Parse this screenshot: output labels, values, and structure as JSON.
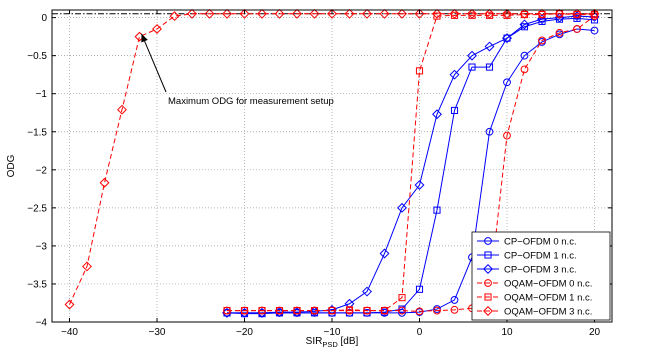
{
  "chart_data": {
    "type": "line",
    "xlabel": "SIR",
    "xlabel_sub": "PSD",
    "xlabel_unit": " [dB]",
    "ylabel": "ODG",
    "xlim": [
      -42,
      22
    ],
    "ylim": [
      -4,
      0.1
    ],
    "xticks": [
      -40,
      -30,
      -20,
      -10,
      0,
      10,
      20
    ],
    "yticks": [
      0,
      -0.5,
      -1,
      -1.5,
      -2,
      -2.5,
      -3,
      -3.5,
      -4
    ],
    "grid": true,
    "reference_line_y": 0.05,
    "legend_position": "bottom-right",
    "annotation": {
      "text": "Maximum ODG for measurement setup",
      "point": [
        -32,
        -0.2
      ]
    },
    "colors": {
      "blue": "#0000ff",
      "red": "#ff0000"
    },
    "series": [
      {
        "name": "CP−OFDM 0 n.c.",
        "color": "#0000ff",
        "marker": "circle",
        "dash": "solid",
        "x": [
          -22,
          -20,
          -18,
          -16,
          -14,
          -12,
          -10,
          -8,
          -6,
          -4,
          -2,
          0,
          2,
          4,
          6,
          8,
          10,
          12,
          14,
          16,
          18,
          20
        ],
        "y": [
          -3.88,
          -3.88,
          -3.88,
          -3.88,
          -3.88,
          -3.88,
          -3.88,
          -3.88,
          -3.88,
          -3.88,
          -3.88,
          -3.87,
          -3.83,
          -3.71,
          -3.15,
          -1.5,
          -0.85,
          -0.5,
          -0.32,
          -0.22,
          -0.15,
          -0.17
        ]
      },
      {
        "name": "CP−OFDM 1 n.c.",
        "color": "#0000ff",
        "marker": "square",
        "dash": "solid",
        "x": [
          -22,
          -20,
          -18,
          -16,
          -14,
          -12,
          -10,
          -8,
          -6,
          -4,
          -2,
          0,
          2,
          4,
          6,
          8,
          10,
          12,
          14,
          16,
          18,
          20
        ],
        "y": [
          -3.88,
          -3.89,
          -3.89,
          -3.88,
          -3.88,
          -3.88,
          -3.88,
          -3.88,
          -3.88,
          -3.87,
          -3.83,
          -3.57,
          -2.53,
          -1.22,
          -0.65,
          -0.65,
          -0.27,
          -0.12,
          -0.05,
          -0.02,
          -0.01,
          -0.03
        ]
      },
      {
        "name": "CP−OFDM 3 n.c.",
        "color": "#0000ff",
        "marker": "diamond",
        "dash": "solid",
        "x": [
          -22,
          -20,
          -18,
          -16,
          -14,
          -12,
          -10,
          -8,
          -6,
          -4,
          -2,
          0,
          2,
          4,
          6,
          8,
          10,
          12,
          14,
          16,
          18,
          20
        ],
        "y": [
          -3.88,
          -3.88,
          -3.88,
          -3.87,
          -3.87,
          -3.86,
          -3.84,
          -3.76,
          -3.6,
          -3.1,
          -2.5,
          -2.2,
          -1.27,
          -0.75,
          -0.5,
          -0.38,
          -0.27,
          -0.09,
          -0.02,
          0.0,
          0.02,
          0.01
        ]
      },
      {
        "name": "OQAM−OFDM 0 n.c.",
        "color": "#ff0000",
        "marker": "circle",
        "dash": "dashed",
        "x": [
          -22,
          -20,
          -18,
          -16,
          -14,
          -12,
          -10,
          -8,
          -6,
          -4,
          -2,
          0,
          2,
          4,
          6,
          8,
          10,
          12,
          14,
          16,
          18,
          20
        ],
        "y": [
          -3.85,
          -3.85,
          -3.85,
          -3.85,
          -3.85,
          -3.85,
          -3.85,
          -3.85,
          -3.85,
          -3.85,
          -3.85,
          -3.86,
          -3.85,
          -3.84,
          -3.82,
          -3.6,
          -1.55,
          -0.68,
          -0.3,
          -0.2,
          -0.15,
          0.02
        ]
      },
      {
        "name": "OQAM−OFDM 1 n.c.",
        "color": "#ff0000",
        "marker": "square",
        "dash": "dashed",
        "x": [
          -22,
          -20,
          -18,
          -16,
          -14,
          -12,
          -10,
          -8,
          -6,
          -4,
          -2,
          0,
          2,
          4,
          6,
          8,
          10,
          12,
          14,
          16,
          18,
          20
        ],
        "y": [
          -3.85,
          -3.85,
          -3.85,
          -3.85,
          -3.85,
          -3.85,
          -3.85,
          -3.84,
          -3.85,
          -3.85,
          -3.68,
          -0.7,
          0.02,
          0.03,
          0.03,
          0.03,
          0.03,
          0.04,
          0.04,
          0.05,
          0.04,
          0.04
        ]
      },
      {
        "name": "OQAM−OFDM 3 n.c.",
        "color": "#ff0000",
        "marker": "diamond",
        "dash": "dashed",
        "x": [
          -40,
          -38,
          -36,
          -34,
          -32,
          -30,
          -28,
          -26,
          -24,
          -22,
          -20,
          -18,
          -16,
          -14,
          -12,
          -10,
          -8,
          -6,
          -4,
          -2,
          0,
          2,
          4,
          6,
          8,
          10,
          12,
          14,
          16,
          18,
          20
        ],
        "y": [
          -3.77,
          -3.27,
          -2.17,
          -1.21,
          -0.25,
          -0.15,
          0.02,
          0.05,
          0.05,
          0.05,
          0.05,
          0.05,
          0.05,
          0.05,
          0.05,
          0.05,
          0.05,
          0.05,
          0.05,
          0.05,
          0.05,
          0.05,
          0.05,
          0.05,
          0.05,
          0.05,
          0.05,
          0.05,
          0.05,
          0.05,
          0.05
        ]
      }
    ]
  }
}
